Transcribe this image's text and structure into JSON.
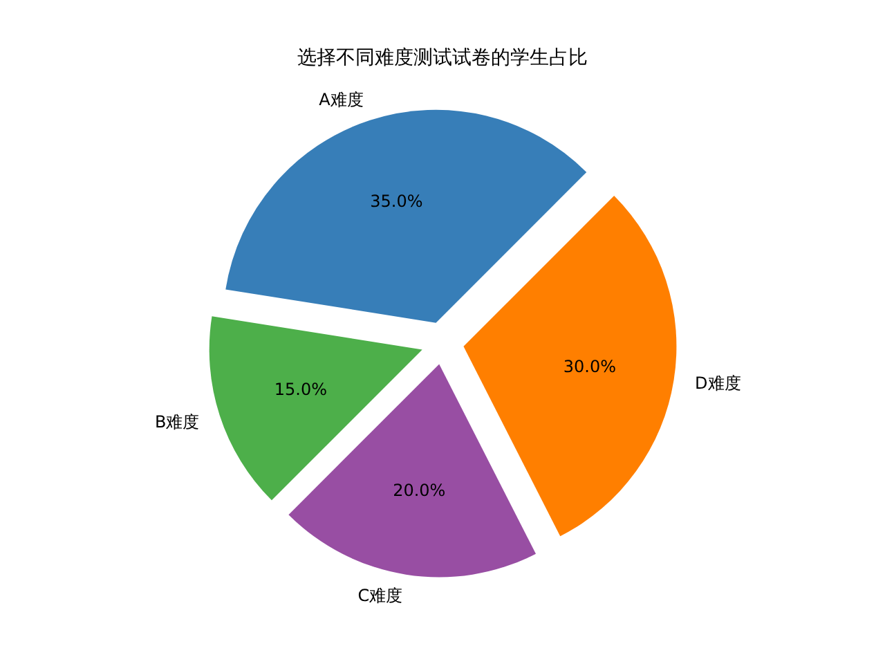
{
  "chart_data": {
    "type": "pie",
    "title": "选择不同难度测试试卷的学生占比",
    "categories": [
      "A难度",
      "B难度",
      "C难度",
      "D难度"
    ],
    "values": [
      35,
      15,
      20,
      30
    ],
    "colors": [
      "#377eb8",
      "#4daf4a",
      "#984ea3",
      "#ff7f00"
    ],
    "value_labels": [
      "35.0%",
      "15.0%",
      "20.0%",
      "30.0%"
    ]
  }
}
